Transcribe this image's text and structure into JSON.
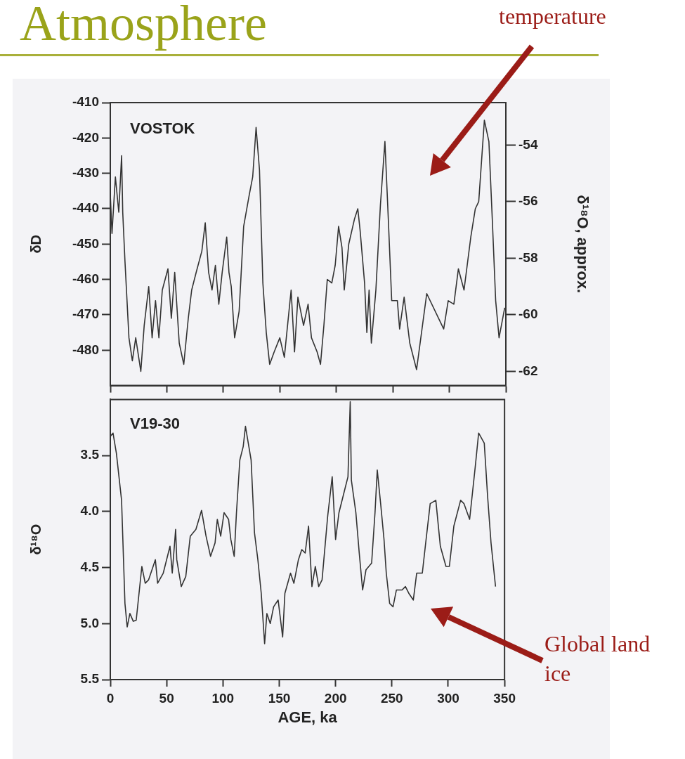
{
  "chart_data": [
    {
      "type": "line",
      "title": "Atmosphere",
      "ylabel": "δD",
      "y2label": "δ¹⁸O, approx.",
      "annotations": [
        "VOSTOK",
        "temperature"
      ],
      "xlim": [
        0,
        350
      ],
      "xticks": [
        0,
        50,
        100,
        150,
        200,
        250,
        300,
        350
      ],
      "ylim": [
        -490,
        -410
      ],
      "yticks": [
        -480,
        -470,
        -460,
        -450,
        -440,
        -430,
        -420,
        -410
      ],
      "y2lim": [
        -62.5,
        -52.5
      ],
      "y2ticks": [
        -62,
        -60,
        -58,
        -56,
        -54
      ],
      "tick_labels": "y",
      "grid": false,
      "legend": false,
      "marker": "none",
      "line_style": "solid",
      "series": [
        {
          "color": "#333333",
          "x": [
            0,
            1.5,
            4.5,
            7.5,
            10,
            11,
            13,
            16.5,
            19.5,
            22.5,
            27,
            30,
            34,
            37,
            40,
            43,
            46,
            51,
            54,
            57,
            61,
            65,
            69,
            72,
            76,
            81,
            84,
            87,
            90,
            93,
            96,
            99,
            103,
            105,
            107,
            110,
            114,
            118,
            123,
            126,
            129,
            132,
            135,
            138,
            141,
            145,
            150,
            154,
            160,
            163,
            166,
            171,
            175,
            178,
            183,
            186,
            189,
            192,
            196,
            199,
            202,
            205,
            207,
            211,
            216,
            219,
            221,
            225,
            227,
            229,
            231,
            235,
            239,
            243,
            246,
            249,
            254,
            256,
            260,
            265,
            271,
            280,
            295,
            299,
            304,
            308,
            313,
            319,
            323,
            326,
            331,
            335,
            338,
            341,
            344,
            349
          ],
          "values": [
            -436,
            -447,
            -431,
            -441,
            -425,
            -441,
            -455,
            -476.5,
            -483,
            -476.5,
            -486,
            -473,
            -462,
            -476.5,
            -466,
            -476.5,
            -463,
            -457,
            -471,
            -458,
            -478,
            -484,
            -471,
            -463,
            -458,
            -452,
            -444,
            -458,
            -463,
            -456,
            -467,
            -458,
            -448,
            -458,
            -462,
            -476.5,
            -469,
            -445,
            -436,
            -431,
            -417,
            -429,
            -461,
            -475,
            -484,
            -480.5,
            -476.5,
            -482,
            -463,
            -480.5,
            -465,
            -473,
            -467,
            -476.5,
            -480.5,
            -484,
            -473,
            -460,
            -461,
            -456,
            -445,
            -451,
            -463,
            -450,
            -443,
            -440,
            -446,
            -461,
            -475,
            -463,
            -478,
            -463,
            -439,
            -421,
            -443,
            -466,
            -466,
            -474,
            -465,
            -478,
            -485.5,
            -464,
            -474,
            -466,
            -467,
            -457,
            -463,
            -448,
            -440,
            -438,
            -415,
            -421,
            -443,
            -466,
            -476.5,
            -468
          ]
        }
      ]
    },
    {
      "type": "line",
      "xlabel": "AGE, ka",
      "ylabel": "δ¹⁸O",
      "annotations": [
        "V19-30",
        "Global land ice"
      ],
      "xlim": [
        0,
        350
      ],
      "xticks": [
        0,
        50,
        100,
        150,
        200,
        250,
        300,
        350
      ],
      "ylim": [
        5.5,
        3.0
      ],
      "yticks": [
        {
          "value": 5.5,
          "label": "5.5"
        },
        {
          "value": 5,
          "label": "5.0"
        },
        {
          "value": 4.5,
          "label": "4.5"
        },
        {
          "value": 4,
          "label": "4.0"
        },
        {
          "value": 3.5,
          "label": "3.5"
        }
      ],
      "grid": false,
      "legend": false,
      "marker": "none",
      "line_style": "solid",
      "series": [
        {
          "color": "#333333",
          "x": [
            0,
            2.4,
            5.4,
            10,
            13,
            15,
            17.4,
            20.4,
            23,
            28,
            31,
            34,
            40,
            42,
            47,
            53,
            55,
            58,
            59,
            63,
            67,
            71,
            76,
            81,
            85,
            89,
            93,
            95,
            98,
            101,
            105,
            107,
            110,
            112,
            115,
            118,
            120,
            122,
            125,
            128,
            131,
            134,
            137,
            139,
            142,
            145,
            149,
            153,
            155,
            160,
            163,
            167,
            170,
            173,
            176,
            179,
            182,
            185,
            188,
            193,
            197,
            200,
            203,
            208,
            211,
            213,
            214,
            218,
            221,
            224,
            227,
            232,
            235,
            237,
            240,
            243,
            245,
            248,
            251,
            254,
            259,
            262,
            265,
            269,
            272,
            277,
            280,
            284,
            289,
            293,
            298,
            301,
            305,
            311,
            314,
            319,
            324,
            327,
            332,
            335,
            338,
            342
          ],
          "values": [
            3.33,
            3.3,
            3.48,
            3.9,
            4.82,
            5.03,
            4.91,
            4.98,
            4.97,
            4.49,
            4.64,
            4.61,
            4.43,
            4.64,
            4.55,
            4.31,
            4.55,
            4.16,
            4.43,
            4.67,
            4.58,
            4.22,
            4.16,
            3.99,
            4.22,
            4.4,
            4.28,
            4.07,
            4.22,
            4.01,
            4.07,
            4.25,
            4.4,
            4.01,
            3.54,
            3.42,
            3.24,
            3.36,
            3.54,
            4.19,
            4.43,
            4.73,
            5.18,
            4.91,
            5.0,
            4.85,
            4.79,
            5.12,
            4.73,
            4.55,
            4.64,
            4.43,
            4.34,
            4.37,
            4.13,
            4.67,
            4.49,
            4.67,
            4.61,
            4.04,
            3.69,
            4.25,
            4.01,
            3.81,
            3.69,
            3.02,
            3.72,
            4.01,
            4.37,
            4.7,
            4.52,
            4.46,
            4.01,
            3.63,
            3.93,
            4.25,
            4.55,
            4.82,
            4.85,
            4.7,
            4.7,
            4.67,
            4.73,
            4.79,
            4.55,
            4.55,
            4.28,
            3.93,
            3.9,
            4.31,
            4.49,
            4.49,
            4.13,
            3.9,
            3.93,
            4.07,
            3.6,
            3.3,
            3.39,
            3.87,
            4.28,
            4.67
          ]
        }
      ]
    }
  ]
}
